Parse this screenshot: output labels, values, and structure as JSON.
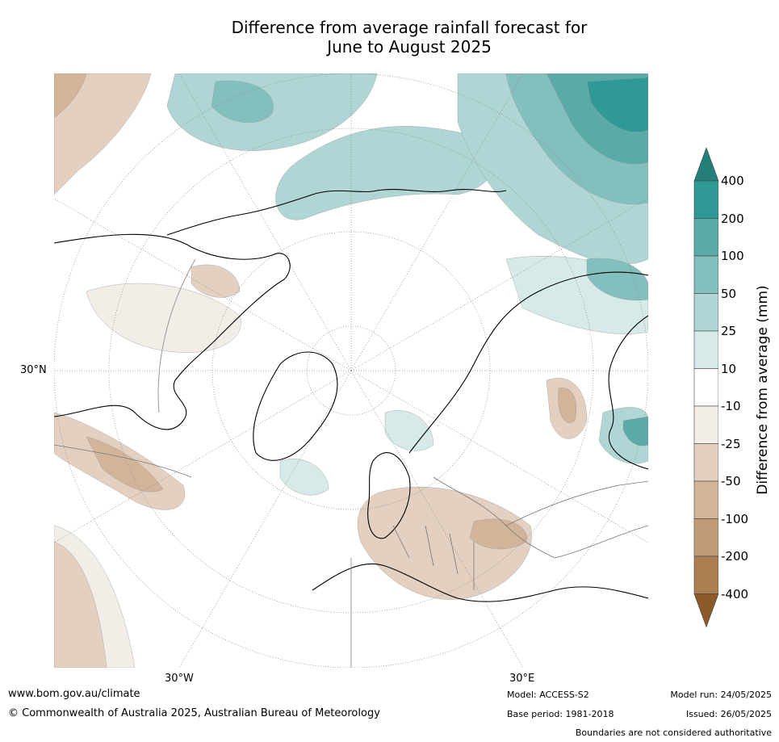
{
  "title_line1": "Difference from average rainfall forecast for",
  "title_line2": "June to August 2025",
  "map": {
    "projection": "north-polar-stereographic",
    "lat_label": "30°N",
    "lon_labels": [
      "30°W",
      "30°E"
    ],
    "colors": {
      "wet_400": "#237f7a",
      "wet_200": "#2e9995",
      "wet_100": "#5aaaa8",
      "wet_50": "#82bfbd",
      "wet_25": "#afd6d4",
      "wet_10": "#d6eae9",
      "neutral": "#ffffff",
      "dry_10": "#f2ede7",
      "dry_25": "#e3d0c0",
      "dry_50": "#d2b49a",
      "dry_100": "#c19b77",
      "dry_200": "#ad7e52",
      "dry_400": "#8c5a28",
      "coast": "#000000",
      "border": "#777777"
    }
  },
  "colorbar": {
    "label": "Difference from average (mm)",
    "ticks": [
      "400",
      "200",
      "100",
      "50",
      "25",
      "10",
      "-10",
      "-25",
      "-50",
      "-100",
      "-200",
      "-400"
    ]
  },
  "footer": {
    "url": "www.bom.gov.au/climate",
    "copyright": "© Commonwealth of Australia 2025, Australian Bureau of Meteorology",
    "model": "Model: ACCESS-S2",
    "base_period": "Base period: 1981-2018",
    "model_run": "Model run: 24/05/2025",
    "issued": "Issued: 26/05/2025",
    "disclaimer": "Boundaries are not considered authoritative"
  }
}
